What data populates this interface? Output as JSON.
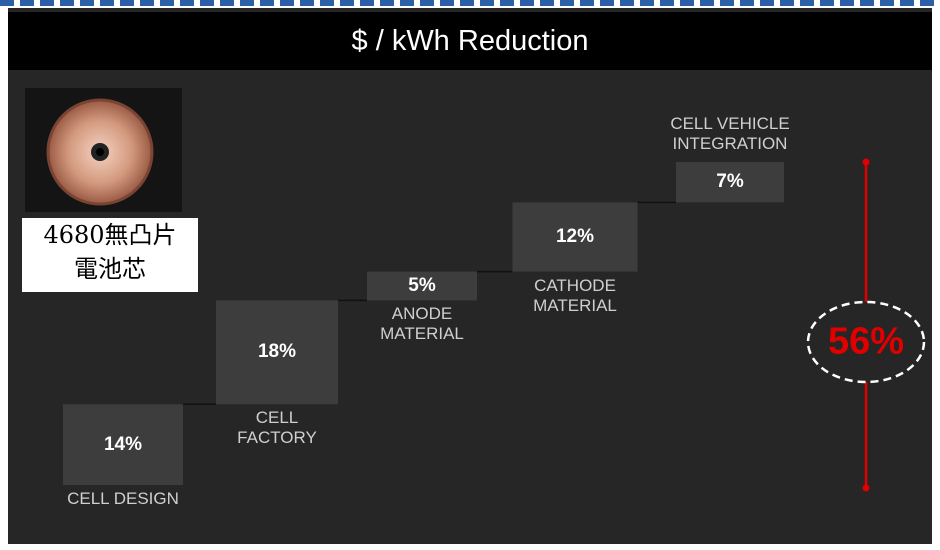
{
  "chart_data": {
    "type": "waterfall",
    "title": "$ / kWh Reduction",
    "categories": [
      "CELL DESIGN",
      "CELL\nFACTORY",
      "ANODE\nMATERIAL",
      "CATHODE\nMATERIAL",
      "CELL VEHICLE\nINTEGRATION"
    ],
    "values": [
      14,
      18,
      5,
      12,
      7
    ],
    "value_labels": [
      "14%",
      "18%",
      "5%",
      "12%",
      "7%"
    ],
    "color": "#3d3d3d",
    "total": {
      "value": 56,
      "label": "56%",
      "color": "#e00000"
    },
    "annotations": [
      "4680無凸片\n電池芯"
    ]
  }
}
